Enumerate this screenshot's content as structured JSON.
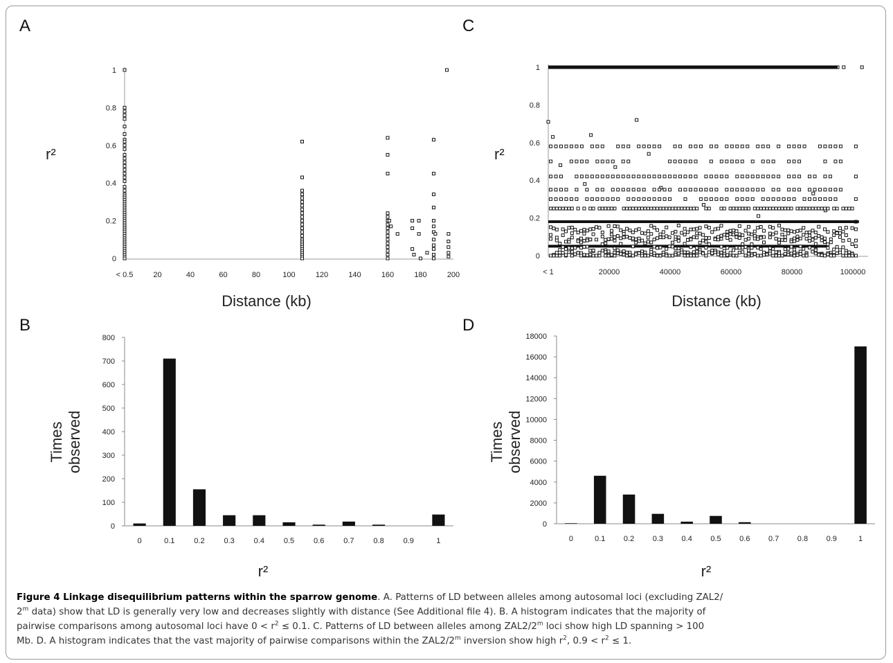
{
  "figure": {
    "panel_letters": [
      "A",
      "B",
      "C",
      "D"
    ],
    "caption": {
      "title": "Figure 4 Linkage disequilibrium patterns within the sparrow genome",
      "seg1": ". A. Patterns of LD between alleles among autosomal loci (excluding ZAL2/",
      "seg2a": "2",
      "seg2sup": "m",
      "seg2b": " data) show that LD is generally very low and decreases slightly with distance (See Additional file 4). B. A histogram indicates that the majority of",
      "seg3a": "pairwise comparisons among autosomal loci have 0 < r",
      "seg3sup": "2",
      "seg3b": " ≤ 0.1. C. Patterns of LD between alleles among ZAL2/2",
      "seg3sup2": "m",
      "seg3c": " loci show high LD spanning > 100",
      "seg4a": "Mb. D. A histogram indicates that the vast majority of pairwise comparisons within the ZAL2/2",
      "seg4sup": "m",
      "seg4b": " inversion show high r",
      "seg4sup2": "2",
      "seg4c": ", 0.9 < r",
      "seg4sup3": "2",
      "seg4d": " ≤ 1."
    }
  },
  "chart_data": [
    {
      "panel": "A",
      "type": "scatter",
      "xlabel": "Distance (kb)",
      "ylabel": "r²",
      "xlim": [
        0,
        200
      ],
      "ylim": [
        0,
        1
      ],
      "xticks": [
        "< 0.5",
        "20",
        "40",
        "60",
        "80",
        "100",
        "120",
        "140",
        "160",
        "180",
        "200"
      ],
      "yticks": [
        "0",
        "0.2",
        "0.4",
        "0.6",
        "0.8",
        "1"
      ],
      "points": [
        [
          0,
          1.0
        ],
        [
          0,
          0.8
        ],
        [
          0,
          0.78
        ],
        [
          0,
          0.76
        ],
        [
          0,
          0.74
        ],
        [
          0,
          0.7
        ],
        [
          0,
          0.66
        ],
        [
          0,
          0.63
        ],
        [
          0,
          0.62
        ],
        [
          0,
          0.6
        ],
        [
          0,
          0.58
        ],
        [
          0,
          0.55
        ],
        [
          0,
          0.53
        ],
        [
          0,
          0.51
        ],
        [
          0,
          0.49
        ],
        [
          0,
          0.47
        ],
        [
          0,
          0.45
        ],
        [
          0,
          0.43
        ],
        [
          0,
          0.41
        ],
        [
          0,
          0.38
        ],
        [
          0,
          0.36
        ],
        [
          0,
          0.34
        ],
        [
          0,
          0.33
        ],
        [
          0,
          0.32
        ],
        [
          0,
          0.31
        ],
        [
          0,
          0.3
        ],
        [
          0,
          0.29
        ],
        [
          0,
          0.28
        ],
        [
          0,
          0.27
        ],
        [
          0,
          0.26
        ],
        [
          0,
          0.25
        ],
        [
          0,
          0.24
        ],
        [
          0,
          0.23
        ],
        [
          0,
          0.22
        ],
        [
          0,
          0.21
        ],
        [
          0,
          0.2
        ],
        [
          0,
          0.19
        ],
        [
          0,
          0.18
        ],
        [
          0,
          0.17
        ],
        [
          0,
          0.16
        ],
        [
          0,
          0.15
        ],
        [
          0,
          0.14
        ],
        [
          0,
          0.13
        ],
        [
          0,
          0.12
        ],
        [
          0,
          0.11
        ],
        [
          0,
          0.1
        ],
        [
          0,
          0.09
        ],
        [
          0,
          0.08
        ],
        [
          0,
          0.07
        ],
        [
          0,
          0.06
        ],
        [
          0,
          0.05
        ],
        [
          0,
          0.04
        ],
        [
          0,
          0.03
        ],
        [
          0,
          0.02
        ],
        [
          0,
          0.01
        ],
        [
          0,
          0.0
        ],
        [
          108,
          0.62
        ],
        [
          108,
          0.43
        ],
        [
          108,
          0.36
        ],
        [
          108,
          0.34
        ],
        [
          108,
          0.32
        ],
        [
          108,
          0.3
        ],
        [
          108,
          0.28
        ],
        [
          108,
          0.26
        ],
        [
          108,
          0.24
        ],
        [
          108,
          0.22
        ],
        [
          108,
          0.2
        ],
        [
          108,
          0.18
        ],
        [
          108,
          0.16
        ],
        [
          108,
          0.14
        ],
        [
          108,
          0.12
        ],
        [
          108,
          0.1
        ],
        [
          108,
          0.09
        ],
        [
          108,
          0.08
        ],
        [
          108,
          0.07
        ],
        [
          108,
          0.06
        ],
        [
          108,
          0.05
        ],
        [
          108,
          0.04
        ],
        [
          108,
          0.03
        ],
        [
          108,
          0.02
        ],
        [
          108,
          0.01
        ],
        [
          108,
          0.0
        ],
        [
          160,
          0.64
        ],
        [
          160,
          0.55
        ],
        [
          160,
          0.45
        ],
        [
          160,
          0.24
        ],
        [
          160,
          0.22
        ],
        [
          160,
          0.2
        ],
        [
          160,
          0.18
        ],
        [
          160,
          0.16
        ],
        [
          160,
          0.14
        ],
        [
          160,
          0.12
        ],
        [
          160,
          0.1
        ],
        [
          160,
          0.08
        ],
        [
          160,
          0.06
        ],
        [
          160,
          0.04
        ],
        [
          160,
          0.02
        ],
        [
          160,
          0.0
        ],
        [
          161,
          0.2
        ],
        [
          162,
          0.17
        ],
        [
          166,
          0.13
        ],
        [
          175,
          0.2
        ],
        [
          175,
          0.16
        ],
        [
          175,
          0.05
        ],
        [
          176,
          0.02
        ],
        [
          179,
          0.2
        ],
        [
          179,
          0.13
        ],
        [
          180,
          0.0
        ],
        [
          184,
          0.03
        ],
        [
          188,
          0.63
        ],
        [
          188,
          0.45
        ],
        [
          188,
          0.34
        ],
        [
          188,
          0.27
        ],
        [
          188,
          0.2
        ],
        [
          188,
          0.17
        ],
        [
          188,
          0.14
        ],
        [
          188,
          0.1
        ],
        [
          188,
          0.07
        ],
        [
          188,
          0.05
        ],
        [
          188,
          0.02
        ],
        [
          188,
          0.0
        ],
        [
          189,
          0.13
        ],
        [
          196,
          1.0
        ],
        [
          197,
          0.13
        ],
        [
          197,
          0.09
        ],
        [
          197,
          0.06
        ],
        [
          197,
          0.03
        ],
        [
          197,
          0.01
        ]
      ]
    },
    {
      "panel": "B",
      "type": "bar",
      "xlabel": "r²",
      "ylabel": "Times observed",
      "ylim": [
        0,
        800
      ],
      "yticks": [
        "0",
        "100",
        "200",
        "300",
        "400",
        "500",
        "600",
        "700",
        "800"
      ],
      "categories": [
        "0",
        "0.1",
        "0.2",
        "0.3",
        "0.4",
        "0.5",
        "0.6",
        "0.7",
        "0.8",
        "0.9",
        "1"
      ],
      "values": [
        10,
        710,
        155,
        45,
        45,
        15,
        5,
        18,
        5,
        0,
        48
      ]
    },
    {
      "panel": "C",
      "type": "scatter",
      "xlabel": "Distance (kb)",
      "ylabel": "r²",
      "xlim": [
        0,
        105000
      ],
      "ylim": [
        0,
        1
      ],
      "xticks": [
        "< 1",
        "20000",
        "40000",
        "60000",
        "80000",
        "100000"
      ],
      "yticks": [
        "0",
        "0.2",
        "0.4",
        "0.6",
        "0.8",
        "1"
      ],
      "dense_bands": [
        {
          "y": 1.0,
          "x_from": 0,
          "x_to": 95000
        },
        {
          "y": 0.18,
          "x_from": 0,
          "x_to": 102000
        },
        {
          "y": 0.05,
          "x_from": 0,
          "x_to": 92000
        }
      ],
      "band_levels": [
        0.58,
        0.5,
        0.42,
        0.35,
        0.3,
        0.25,
        0.14,
        0.1,
        0.08,
        0.03,
        0.01,
        0.0
      ],
      "points": [
        [
          0,
          0.71
        ],
        [
          1500,
          0.63
        ],
        [
          14000,
          0.64
        ],
        [
          29000,
          0.72
        ],
        [
          33000,
          0.54
        ],
        [
          95000,
          1.0
        ],
        [
          97000,
          1.0
        ],
        [
          103000,
          1.0
        ],
        [
          101000,
          0.58
        ],
        [
          101000,
          0.42
        ],
        [
          101000,
          0.3
        ],
        [
          101000,
          0.18
        ],
        [
          101000,
          0.14
        ],
        [
          101000,
          0.08
        ],
        [
          101000,
          0.05
        ],
        [
          101000,
          0.0
        ],
        [
          4000,
          0.48
        ],
        [
          12000,
          0.38
        ],
        [
          22000,
          0.47
        ],
        [
          37000,
          0.36
        ],
        [
          51000,
          0.27
        ],
        [
          69000,
          0.21
        ],
        [
          87000,
          0.33
        ],
        [
          91000,
          0.24
        ]
      ]
    },
    {
      "panel": "D",
      "type": "bar",
      "xlabel": "r²",
      "ylabel": "Times observed",
      "ylim": [
        0,
        18000
      ],
      "yticks": [
        "0",
        "2000",
        "4000",
        "6000",
        "8000",
        "10000",
        "12000",
        "14000",
        "16000",
        "18000"
      ],
      "categories": [
        "0",
        "0.1",
        "0.2",
        "0.3",
        "0.4",
        "0.5",
        "0.6",
        "0.7",
        "0.8",
        "0.9",
        "1"
      ],
      "values": [
        50,
        4600,
        2800,
        950,
        200,
        750,
        150,
        0,
        0,
        0,
        17000
      ]
    }
  ]
}
